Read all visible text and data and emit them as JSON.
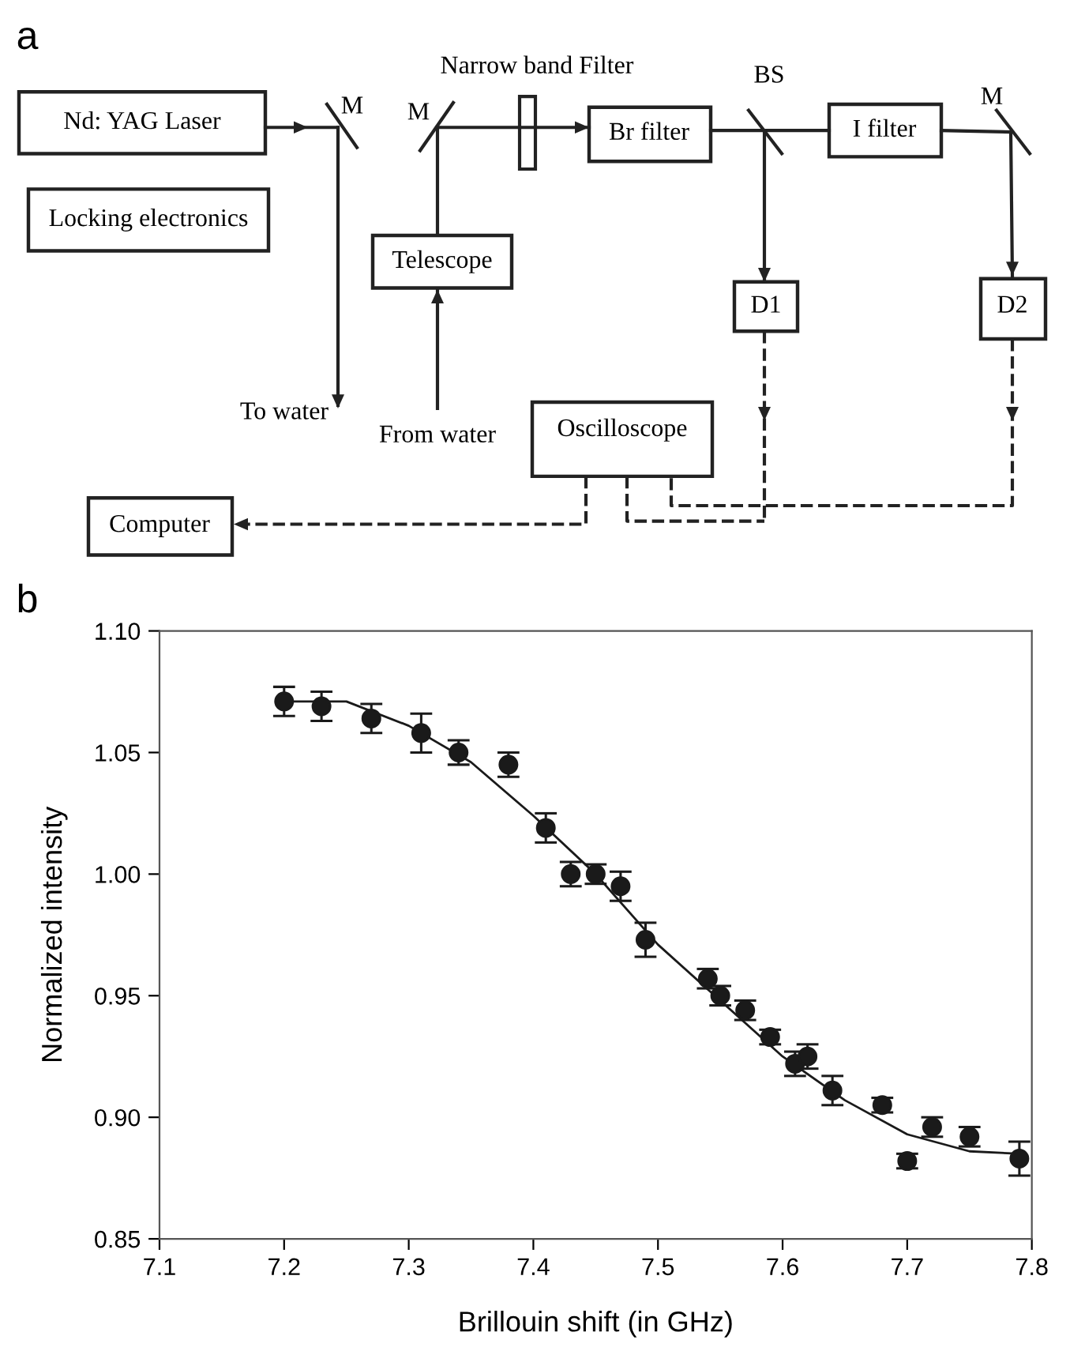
{
  "chart_data": [
    {
      "type": "other",
      "title": "a",
      "annotations": [
        "Nd: YAG Laser",
        "Locking electronics",
        "Narrow band Filter",
        "M",
        "M",
        "Br filter",
        "BS",
        "I filter",
        "M",
        "Telescope",
        "D1",
        "D2",
        "To water",
        "From water",
        "Oscilloscope",
        "Computer"
      ]
    },
    {
      "type": "scatter",
      "title": "b",
      "xlabel": "Brillouin shift (in GHz)",
      "ylabel": "Normalized intensity",
      "xlim": [
        7.1,
        7.8
      ],
      "xticks": [
        7.1,
        7.2,
        7.3,
        7.4,
        7.5,
        7.6,
        7.7,
        7.8
      ],
      "ylim": [
        0.85,
        1.1
      ],
      "yticks": [
        0.85,
        {
          "value": 0.9,
          "label": "0.90"
        },
        0.95,
        {
          "value": 1.0,
          "label": "1.00"
        },
        1.05,
        {
          "value": 1.1,
          "label": "1.10"
        }
      ],
      "grid": false,
      "series": [
        {
          "type": "scatter",
          "color": "#1a1a1a",
          "marker": "circle",
          "x": [
            7.2,
            7.23,
            7.27,
            7.31,
            7.34,
            7.38,
            7.41,
            7.43,
            7.45,
            7.47,
            7.49,
            7.54,
            7.55,
            7.57,
            7.59,
            7.61,
            7.62,
            7.64,
            7.68,
            7.7,
            7.72,
            7.75,
            7.79
          ],
          "values": [
            1.071,
            1.069,
            1.064,
            1.058,
            1.05,
            1.045,
            1.019,
            1.0,
            1.0,
            0.995,
            0.973,
            0.957,
            0.95,
            0.944,
            0.933,
            0.922,
            0.925,
            0.911,
            0.905,
            0.882,
            0.896,
            0.892,
            0.883
          ],
          "errors": [
            0.006,
            0.006,
            0.006,
            0.008,
            0.005,
            0.005,
            0.006,
            0.005,
            0.004,
            0.006,
            0.007,
            0.004,
            0.004,
            0.004,
            0.003,
            0.005,
            0.005,
            0.006,
            0.003,
            0.003,
            0.004,
            0.004,
            0.007
          ]
        },
        {
          "type": "line",
          "color": "#1a1a1a",
          "marker": "none",
          "line_style": "solid",
          "x": [
            7.2,
            7.25,
            7.3,
            7.35,
            7.4,
            7.45,
            7.5,
            7.55,
            7.6,
            7.65,
            7.7,
            7.75,
            7.79
          ],
          "values": [
            1.071,
            1.071,
            1.061,
            1.046,
            1.024,
            1.0,
            0.971,
            0.948,
            0.925,
            0.907,
            0.893,
            0.886,
            0.885
          ]
        }
      ]
    }
  ]
}
